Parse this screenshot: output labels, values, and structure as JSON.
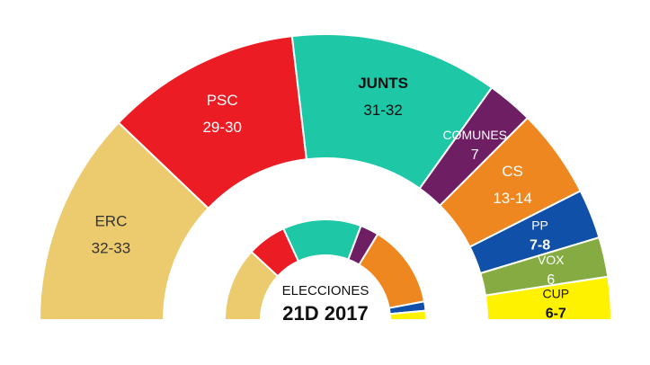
{
  "chart_data": {
    "type": "pie",
    "style": "half-donut parliament chart with inner comparison ring",
    "title": "",
    "center_text": {
      "line1": "ELECCIONES",
      "line2": "21D 2017"
    },
    "parties": [
      {
        "name": "ERC",
        "value_label": "32-33",
        "value": 32.5,
        "color": "#ebcb6e",
        "label_color": "#333333"
      },
      {
        "name": "PSC",
        "value_label": "29-30",
        "value": 29.5,
        "color": "#ec1c24",
        "label_color": "#ffffff"
      },
      {
        "name": "JUNTS",
        "value_label": "31-32",
        "value": 31.5,
        "color": "#1ec8a6",
        "label_color": "#111111"
      },
      {
        "name": "COMUNES",
        "value_label": "7",
        "value": 7,
        "color": "#6e1e63",
        "label_color": "#ffffff"
      },
      {
        "name": "CS",
        "value_label": "13-14",
        "value": 13.5,
        "color": "#ef8721",
        "label_color": "#ffffff"
      },
      {
        "name": "PP",
        "value_label": "7-8",
        "value": 7.5,
        "color": "#1050a8",
        "label_color": "#ffffff"
      },
      {
        "name": "VOX",
        "value_label": "6",
        "value": 6,
        "color": "#86ab42",
        "label_color": "#ffffff"
      },
      {
        "name": "CUP",
        "value_label": "6-7",
        "value": 6.5,
        "color": "#fff200",
        "label_color": "#111111"
      }
    ],
    "inner_ring_2017": [
      {
        "name": "ERC",
        "value": 32,
        "color": "#ebcb6e"
      },
      {
        "name": "PSC",
        "value": 17,
        "color": "#ec1c24"
      },
      {
        "name": "JUNTS",
        "value": 34,
        "color": "#1ec8a6"
      },
      {
        "name": "COMUNES",
        "value": 8,
        "color": "#6e1e63"
      },
      {
        "name": "CS",
        "value": 36,
        "color": "#ef8721"
      },
      {
        "name": "PP",
        "value": 4,
        "color": "#1050a8"
      },
      {
        "name": "CUP",
        "value": 4,
        "color": "#fff200"
      }
    ]
  }
}
